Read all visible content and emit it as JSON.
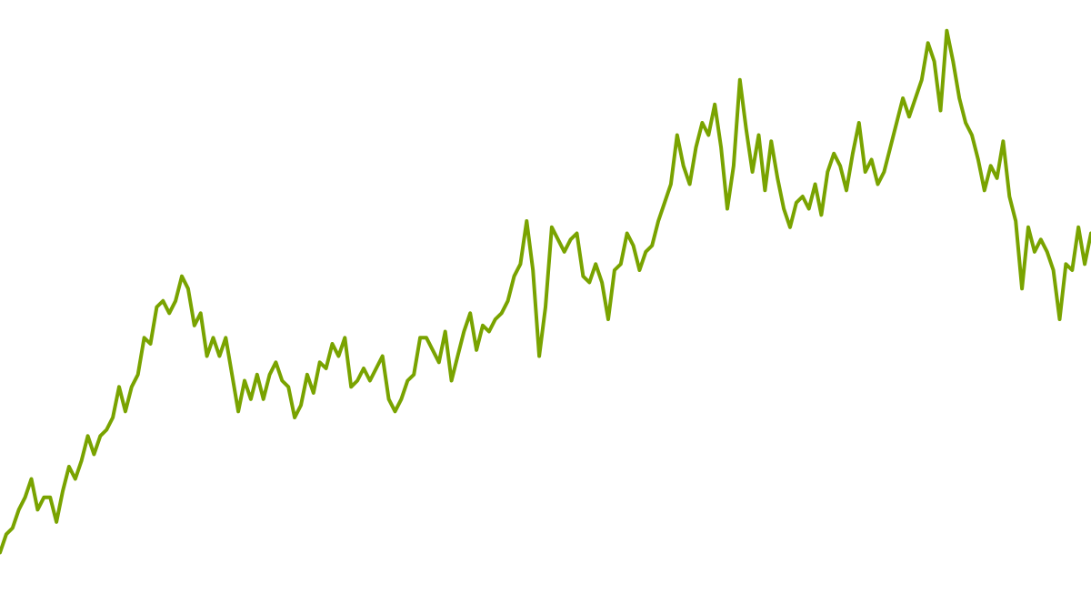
{
  "chart_data": {
    "type": "line",
    "title": "",
    "xlabel": "",
    "ylabel": "",
    "ylim": [
      0,
      100
    ],
    "grid": false,
    "axes_visible": false,
    "legend": "none",
    "colors": {
      "line": "#79a300",
      "background": "#ffffff"
    },
    "series": [
      {
        "values": [
          10,
          13,
          14,
          17,
          19,
          22,
          17,
          19,
          19,
          15,
          20,
          24,
          22,
          25,
          29,
          26,
          29,
          30,
          32,
          37,
          33,
          37,
          39,
          45,
          44,
          50,
          51,
          49,
          51,
          55,
          53,
          47,
          49,
          42,
          45,
          42,
          45,
          39,
          33,
          38,
          35,
          39,
          35,
          39,
          41,
          38,
          37,
          32,
          34,
          39,
          36,
          41,
          40,
          44,
          42,
          45,
          37,
          38,
          40,
          38,
          40,
          42,
          35,
          33,
          35,
          38,
          39,
          45,
          45,
          43,
          41,
          46,
          38,
          42,
          46,
          49,
          43,
          47,
          46,
          48,
          49,
          51,
          55,
          57,
          64,
          56,
          42,
          50,
          63,
          61,
          59,
          61,
          62,
          55,
          54,
          57,
          54,
          48,
          56,
          57,
          62,
          60,
          56,
          59,
          60,
          64,
          67,
          70,
          78,
          73,
          70,
          76,
          80,
          78,
          83,
          76,
          66,
          73,
          87,
          79,
          72,
          78,
          69,
          77,
          71,
          66,
          63,
          67,
          68,
          66,
          70,
          65,
          72,
          75,
          73,
          69,
          75,
          80,
          72,
          74,
          70,
          72,
          76,
          80,
          84,
          81,
          84,
          87,
          93,
          90,
          82,
          95,
          90,
          84,
          80,
          78,
          74,
          69,
          73,
          71,
          77,
          68,
          64,
          53,
          63,
          59,
          61,
          59,
          56,
          48,
          57,
          56,
          63,
          57,
          62
        ]
      }
    ]
  }
}
